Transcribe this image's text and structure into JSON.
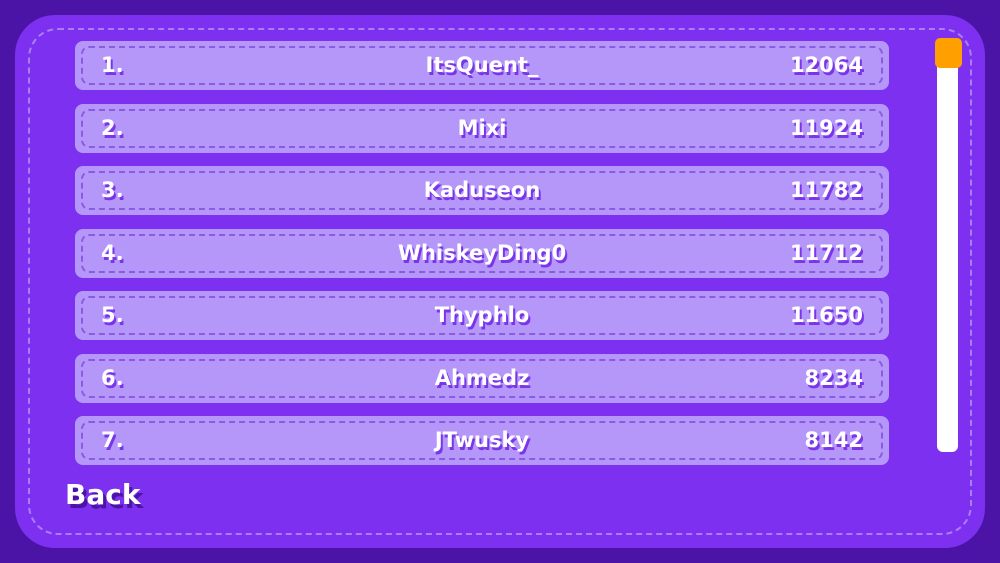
{
  "leaderboard": [
    {
      "rank": "1.",
      "name": "ItsQuent_",
      "score": "12064"
    },
    {
      "rank": "2.",
      "name": "Mixi",
      "score": "11924"
    },
    {
      "rank": "3.",
      "name": "Kaduseon",
      "score": "11782"
    },
    {
      "rank": "4.",
      "name": "WhiskeyDing0",
      "score": "11712"
    },
    {
      "rank": "5.",
      "name": "Thyphlo",
      "score": "11650"
    },
    {
      "rank": "6.",
      "name": "Ahmedz",
      "score": "8234"
    },
    {
      "rank": "7.",
      "name": "JTwusky",
      "score": "8142"
    }
  ],
  "back_label": "Back",
  "scroll_position": 0,
  "colors": {
    "background": "#4b14a6",
    "panel": "#7d30ef",
    "row": "#b597f9",
    "scroll_thumb": "#ffa000"
  }
}
